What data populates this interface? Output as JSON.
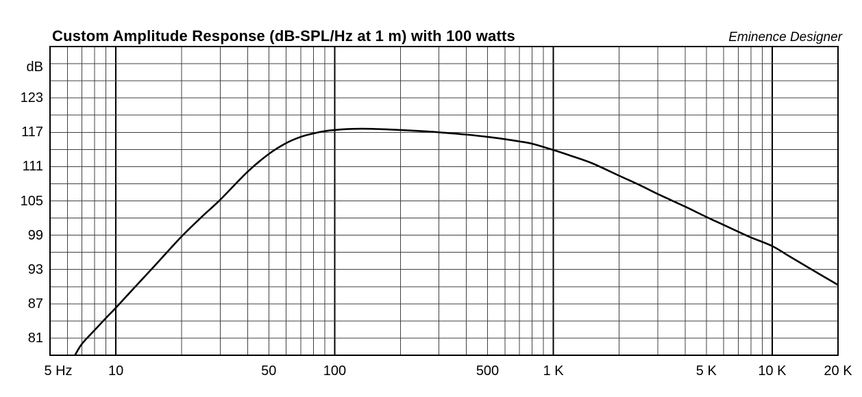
{
  "page": {
    "background": "#ffffff"
  },
  "chart_data": {
    "type": "line",
    "title": "Custom Amplitude Response (dB-SPL/Hz at 1 m) with 100 watts",
    "watermark": "Eminence Designer",
    "grid": "on",
    "legend": "none",
    "x_axis": {
      "scale": "log",
      "min": 5,
      "max": 20000,
      "unit": "Hz",
      "tick_values": [
        5,
        10,
        50,
        100,
        500,
        1000,
        5000,
        10000,
        20000
      ],
      "tick_labels": [
        "5 Hz",
        "10",
        "50",
        "100",
        "500",
        "1 K",
        "5 K",
        "10 K",
        "20 K"
      ],
      "decade_lines": [
        10,
        100,
        1000,
        10000
      ],
      "minor_lines": [
        6,
        7,
        8,
        9,
        20,
        30,
        40,
        50,
        60,
        70,
        80,
        90,
        200,
        300,
        400,
        500,
        600,
        700,
        800,
        900,
        2000,
        3000,
        4000,
        5000,
        6000,
        7000,
        8000,
        9000
      ]
    },
    "y_axis": {
      "unit": "dB",
      "min": 78,
      "max": 132,
      "gridline_step": 3,
      "label_step": 6,
      "tick_values": [
        123,
        117,
        111,
        105,
        99,
        93,
        87,
        81
      ],
      "tick_labels": [
        "123",
        "117",
        "111",
        "105",
        "99",
        "93",
        "87",
        "81"
      ]
    },
    "series": [
      {
        "name": "amplitude-response",
        "units": [
          "Hz",
          "dB-SPL"
        ],
        "points": [
          [
            6.5,
            78.0
          ],
          [
            7,
            80.0
          ],
          [
            8,
            82.4
          ],
          [
            9,
            84.5
          ],
          [
            10,
            86.3
          ],
          [
            12,
            89.6
          ],
          [
            15,
            93.6
          ],
          [
            20,
            98.8
          ],
          [
            25,
            102.4
          ],
          [
            30,
            105.2
          ],
          [
            40,
            110.1
          ],
          [
            50,
            113.2
          ],
          [
            60,
            115.1
          ],
          [
            70,
            116.2
          ],
          [
            80,
            116.8
          ],
          [
            90,
            117.2
          ],
          [
            100,
            117.4
          ],
          [
            120,
            117.6
          ],
          [
            150,
            117.6
          ],
          [
            200,
            117.4
          ],
          [
            250,
            117.2
          ],
          [
            300,
            117.0
          ],
          [
            400,
            116.6
          ],
          [
            500,
            116.2
          ],
          [
            600,
            115.8
          ],
          [
            700,
            115.4
          ],
          [
            800,
            115.0
          ],
          [
            1000,
            113.9
          ],
          [
            1200,
            112.9
          ],
          [
            1500,
            111.6
          ],
          [
            2000,
            109.4
          ],
          [
            2500,
            107.7
          ],
          [
            3000,
            106.2
          ],
          [
            4000,
            104.0
          ],
          [
            5000,
            102.2
          ],
          [
            6000,
            100.8
          ],
          [
            7000,
            99.6
          ],
          [
            8000,
            98.6
          ],
          [
            10000,
            97.1
          ],
          [
            12000,
            95.3
          ],
          [
            15000,
            93.1
          ],
          [
            20000,
            90.3
          ]
        ]
      }
    ],
    "colors": {
      "curve": "#000000",
      "frame": "#000000",
      "grid_minor": "#3f3f3f",
      "grid_major": "#000000",
      "text": "#000000",
      "background": "#ffffff"
    }
  }
}
